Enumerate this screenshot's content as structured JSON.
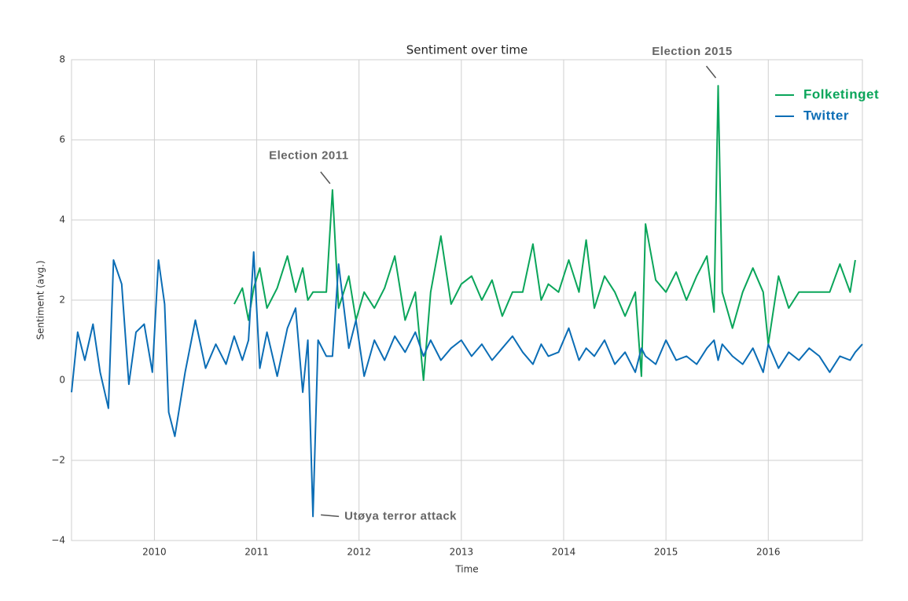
{
  "chart_data": {
    "type": "line",
    "title": "Sentiment over time",
    "x_label": "Time",
    "y_label": "Sentiment (avg.)",
    "x": [
      2009.19,
      2009.25,
      2009.32,
      2009.4,
      2009.47,
      2009.55,
      2009.6,
      2009.68,
      2009.75,
      2009.82,
      2009.9,
      2009.98,
      2010.04,
      2010.1,
      2010.14,
      2010.2,
      2010.3,
      2010.4,
      2010.5,
      2010.6,
      2010.7,
      2010.78,
      2010.86,
      2010.92,
      2010.97,
      2011.03,
      2011.1,
      2011.2,
      2011.3,
      2011.38,
      2011.45,
      2011.5,
      2011.55,
      2011.6,
      2011.68,
      2011.74,
      2011.8,
      2011.9,
      2011.97,
      2012.05,
      2012.15,
      2012.25,
      2012.35,
      2012.45,
      2012.55,
      2012.63,
      2012.7,
      2012.8,
      2012.9,
      2013.0,
      2013.1,
      2013.2,
      2013.3,
      2013.4,
      2013.5,
      2013.6,
      2013.7,
      2013.78,
      2013.85,
      2013.95,
      2014.05,
      2014.15,
      2014.22,
      2014.3,
      2014.4,
      2014.5,
      2014.6,
      2014.7,
      2014.76,
      2014.8,
      2014.9,
      2015.0,
      2015.1,
      2015.2,
      2015.3,
      2015.4,
      2015.47,
      2015.51,
      2015.55,
      2015.65,
      2015.75,
      2015.85,
      2015.95,
      2016.0,
      2016.1,
      2016.2,
      2016.3,
      2016.4,
      2016.5,
      2016.6,
      2016.7,
      2016.8,
      2016.85,
      2016.92
    ],
    "series": [
      {
        "name": "Folketinget",
        "color": "#0aa55a",
        "values": [
          null,
          null,
          null,
          null,
          null,
          null,
          null,
          null,
          null,
          null,
          null,
          null,
          null,
          null,
          null,
          null,
          null,
          null,
          null,
          null,
          null,
          1.9,
          2.3,
          1.5,
          2.3,
          2.8,
          1.8,
          2.3,
          3.1,
          2.2,
          2.8,
          2.0,
          2.2,
          2.2,
          2.2,
          4.75,
          1.8,
          2.6,
          1.5,
          2.2,
          1.8,
          2.3,
          3.1,
          1.5,
          2.2,
          0.0,
          2.2,
          3.6,
          1.9,
          2.4,
          2.6,
          2.0,
          2.5,
          1.6,
          2.2,
          2.2,
          3.4,
          2.0,
          2.4,
          2.2,
          3.0,
          2.2,
          3.5,
          1.8,
          2.6,
          2.2,
          1.6,
          2.2,
          0.1,
          3.9,
          2.5,
          2.2,
          2.7,
          2.0,
          2.6,
          3.1,
          1.7,
          7.35,
          2.2,
          1.3,
          2.2,
          2.8,
          2.2,
          0.9,
          2.6,
          1.8,
          2.2,
          2.2,
          2.2,
          2.2,
          2.9,
          2.2,
          3.0,
          null
        ]
      },
      {
        "name": "Twitter",
        "color": "#0b6db5",
        "values": [
          -0.3,
          1.2,
          0.5,
          1.4,
          0.2,
          -0.7,
          3.0,
          2.4,
          -0.1,
          1.2,
          1.4,
          0.2,
          3.0,
          1.9,
          -0.8,
          -1.4,
          0.2,
          1.5,
          0.3,
          0.9,
          0.4,
          1.1,
          0.5,
          1.0,
          3.2,
          0.3,
          1.2,
          0.1,
          1.3,
          1.8,
          -0.3,
          1.0,
          -3.4,
          1.0,
          0.6,
          0.6,
          2.9,
          0.8,
          1.5,
          0.1,
          1.0,
          0.5,
          1.1,
          0.7,
          1.2,
          0.6,
          1.0,
          0.5,
          0.8,
          1.0,
          0.6,
          0.9,
          0.5,
          0.8,
          1.1,
          0.7,
          0.4,
          0.9,
          0.6,
          0.7,
          1.3,
          0.5,
          0.8,
          0.6,
          1.0,
          0.4,
          0.7,
          0.2,
          0.8,
          0.6,
          0.4,
          1.0,
          0.5,
          0.6,
          0.4,
          0.8,
          1.0,
          0.5,
          0.9,
          0.6,
          0.4,
          0.8,
          0.2,
          0.9,
          0.3,
          0.7,
          0.5,
          0.8,
          0.6,
          0.2,
          0.6,
          0.5,
          0.7,
          0.9
        ]
      }
    ],
    "xlim": [
      2009.19,
      2016.92
    ],
    "ylim": [
      -4,
      8
    ],
    "xticks": [
      2010,
      2011,
      2012,
      2013,
      2014,
      2015,
      2016
    ],
    "yticks": [
      {
        "value": -4,
        "label": "−4"
      },
      {
        "value": -2,
        "label": "−2"
      },
      0,
      2,
      4,
      6,
      8
    ],
    "grid": true,
    "legend": "upper right",
    "annotations": [
      {
        "text": "Election 2011",
        "x": 2011.74,
        "y": 4.75
      },
      {
        "text": "Election 2015",
        "x": 2015.51,
        "y": 7.35
      },
      {
        "text": "Utøya terror attack",
        "x": 2011.55,
        "y": -3.4
      }
    ]
  }
}
